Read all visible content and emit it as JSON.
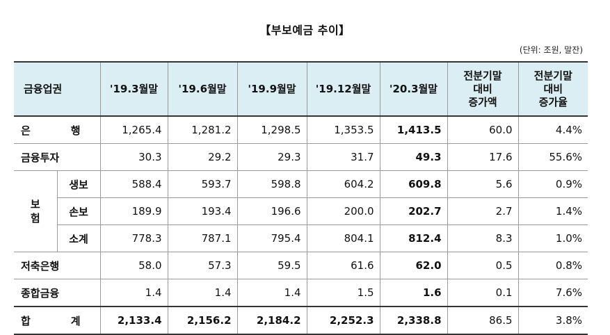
{
  "title": "【부보예금 추이】",
  "unit": "(단위: 조원, 말잔)",
  "headers": {
    "category": "금융업권",
    "periods": [
      "'19.3월말",
      "'19.6월말",
      "'19.9월말",
      "'19.12월말",
      "'20.3월말"
    ],
    "change_amount": [
      "전분기말",
      "대비",
      "증가액"
    ],
    "change_rate": [
      "전분기말",
      "대비",
      "증가율"
    ]
  },
  "rows": {
    "bank": {
      "label_a": "은",
      "label_b": "행",
      "values": [
        "1,265.4",
        "1,281.2",
        "1,298.5",
        "1,353.5",
        "1,413.5"
      ],
      "change": "60.0",
      "rate": "4.4%"
    },
    "securities": {
      "label": "금융투자",
      "values": [
        "30.3",
        "29.2",
        "29.3",
        "31.7",
        "49.3"
      ],
      "change": "17.6",
      "rate": "55.6%"
    },
    "insurance": {
      "label_a": "보",
      "label_b": "험",
      "life": {
        "label": "생보",
        "values": [
          "588.4",
          "593.7",
          "598.8",
          "604.2",
          "609.8"
        ],
        "change": "5.6",
        "rate": "0.9%"
      },
      "nonlife": {
        "label": "손보",
        "values": [
          "189.9",
          "193.4",
          "196.6",
          "200.0",
          "202.7"
        ],
        "change": "2.7",
        "rate": "1.4%"
      },
      "subtotal": {
        "label": "소계",
        "values": [
          "778.3",
          "787.1",
          "795.4",
          "804.1",
          "812.4"
        ],
        "change": "8.3",
        "rate": "1.0%"
      }
    },
    "savings_bank": {
      "label": "저축은행",
      "values": [
        "58.0",
        "57.3",
        "59.5",
        "61.6",
        "62.0"
      ],
      "change": "0.5",
      "rate": "0.8%"
    },
    "finance": {
      "label": "종합금융",
      "values": [
        "1.4",
        "1.4",
        "1.4",
        "1.5",
        "1.6"
      ],
      "change": "0.1",
      "rate": "7.6%"
    },
    "total": {
      "label_a": "합",
      "label_b": "계",
      "values": [
        "2,133.4",
        "2,156.2",
        "2,184.2",
        "2,252.3",
        "2,338.8"
      ],
      "change": "86.5",
      "rate": "3.8%"
    }
  }
}
